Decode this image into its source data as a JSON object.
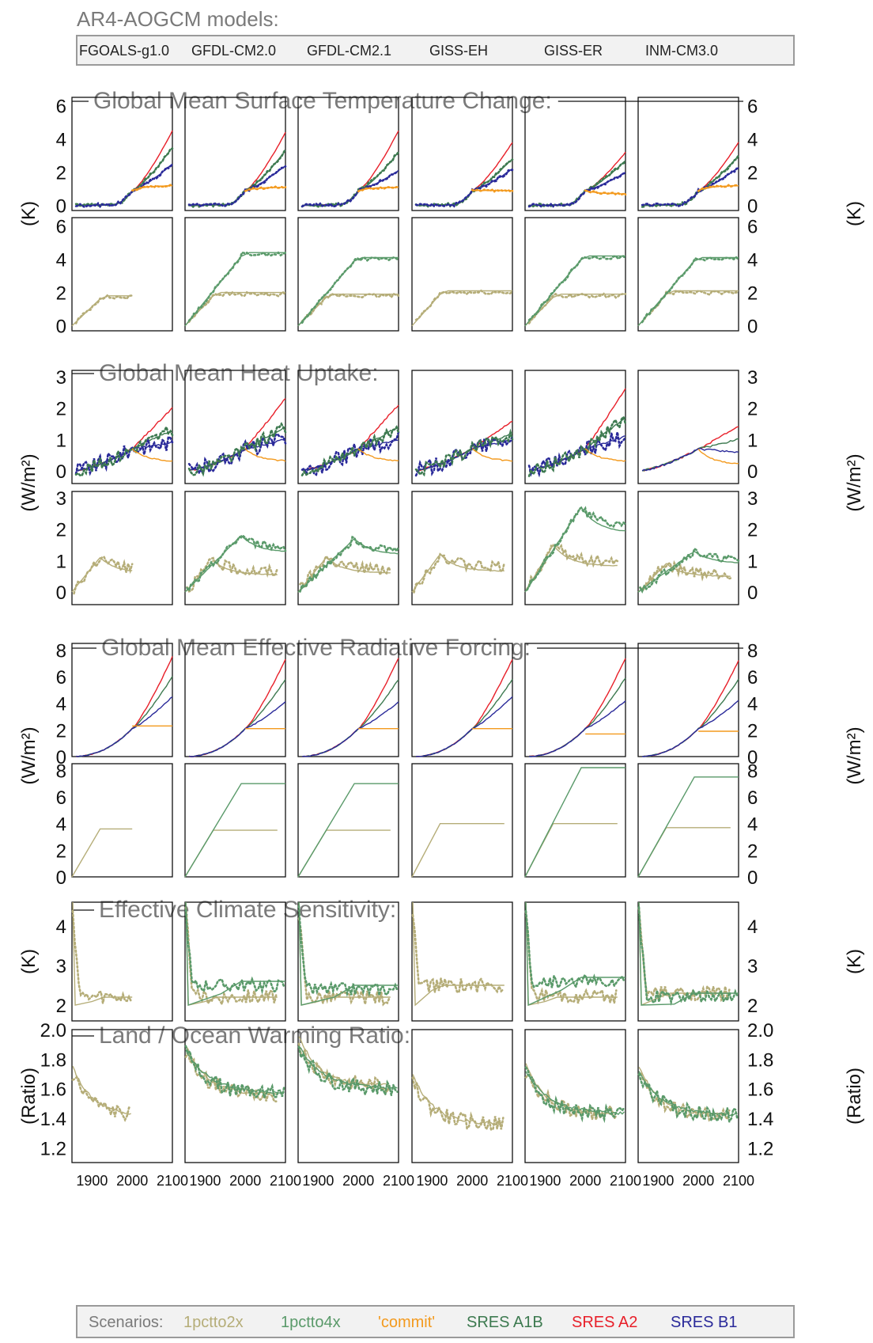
{
  "models_title": "AR4-AOGCM models:",
  "models": [
    "FGOALS-g1.0",
    "GFDL-CM2.0",
    "GFDL-CM2.1",
    "GISS-EH",
    "GISS-ER",
    "INM-CM3.0"
  ],
  "x_ticks": [
    "1900",
    "2000",
    "2100"
  ],
  "legend": {
    "label": "Scenarios:",
    "items": [
      {
        "name": "1pctto2x",
        "color": "#b5ad78"
      },
      {
        "name": "1pctto4x",
        "color": "#5a9a6a"
      },
      {
        "name": "'commit'",
        "color": "#f39a1e"
      },
      {
        "name": "SRES A1B",
        "color": "#3d7a50"
      },
      {
        "name": "SRES A2",
        "color": "#e8202a"
      },
      {
        "name": "SRES B1",
        "color": "#2a2a9a"
      }
    ]
  },
  "sections": [
    {
      "title": "Global Mean Surface Temperature Change:",
      "ylabel_left": "(K)",
      "ylabel_right": "(K)",
      "ticks_a": [
        "0",
        "2",
        "4",
        "6"
      ],
      "ticks_b": [
        "0",
        "2",
        "4",
        "6"
      ]
    },
    {
      "title": "Global Mean Heat Uptake:",
      "ylabel_left": "(W/m²)",
      "ylabel_right": "(W/m²)",
      "ticks_a": [
        "0",
        "1",
        "2",
        "3"
      ],
      "ticks_b": [
        "0",
        "1",
        "2",
        "3"
      ]
    },
    {
      "title": "Global Mean Effective Radiative Forcing:",
      "ylabel_left": "(W/m²)",
      "ylabel_right": "(W/m²)",
      "ticks_a": [
        "0",
        "2",
        "4",
        "6",
        "8"
      ],
      "ticks_b": [
        "0",
        "2",
        "4",
        "6",
        "8"
      ]
    },
    {
      "title": "Effective Climate Sensitivity:",
      "ylabel_left": "(K)",
      "ylabel_right": "(K)",
      "ticks_a": [
        "2",
        "3",
        "4"
      ]
    },
    {
      "title": "Land / Ocean Warming Ratio:",
      "ylabel_left": "(Ratio)",
      "ylabel_right": "(Ratio)",
      "ticks_a": [
        "1.2",
        "1.4",
        "1.6",
        "1.8",
        "2.0"
      ]
    }
  ],
  "chart_data": {
    "type": "line",
    "title": "",
    "x_range": [
      1850,
      2100
    ],
    "models": [
      "FGOALS-g1.0",
      "GFDL-CM2.0",
      "GFDL-CM2.1",
      "GISS-EH",
      "GISS-ER",
      "INM-CM3.0"
    ],
    "panels": [
      {
        "name": "Global Mean Surface Temperature Change (SRES)",
        "unit": "K",
        "ylim": [
          -0.3,
          6.5
        ],
        "series": [
          "SRES A2",
          "SRES A1B",
          "SRES B1",
          "'commit'"
        ],
        "end_values_2100": {
          "SRES A2": [
            4.5,
            4.4,
            4.5,
            3.8,
            3.2,
            3.8
          ],
          "SRES A1B": [
            3.5,
            3.3,
            3.2,
            2.8,
            2.7,
            3.0
          ],
          "SRES B1": [
            2.5,
            2.4,
            2.1,
            2.2,
            2.0,
            2.3
          ],
          "'commit'": [
            1.2,
            1.1,
            1.1,
            0.9,
            0.7,
            1.2
          ]
        }
      },
      {
        "name": "Global Mean Surface Temperature Change (idealized)",
        "unit": "K",
        "ylim": [
          -0.3,
          6.5
        ],
        "series": [
          "1pctto2x",
          "1pctto4x"
        ],
        "plateau_values": {
          "1pctto2x": [
            1.8,
            2.0,
            1.9,
            2.1,
            1.9,
            2.1
          ],
          "1pctto4x": [
            null,
            4.4,
            4.1,
            null,
            4.2,
            4.1
          ]
        }
      },
      {
        "name": "Global Mean Heat Uptake (SRES)",
        "unit": "W/m²",
        "ylim": [
          -0.4,
          3.2
        ],
        "end_values_2100": {
          "SRES A2": [
            2.0,
            2.3,
            2.1,
            1.6,
            2.6,
            1.4
          ],
          "SRES A1B": [
            1.3,
            1.4,
            1.4,
            1.2,
            1.7,
            1.0
          ],
          "SRES B1": [
            0.9,
            1.0,
            1.0,
            1.0,
            1.1,
            0.6
          ],
          "'commit'": [
            0.3,
            0.3,
            0.3,
            0.3,
            0.3,
            0.2
          ]
        }
      },
      {
        "name": "Global Mean Heat Uptake (idealized)",
        "unit": "W/m²",
        "ylim": [
          -0.4,
          3.2
        ],
        "peak_values": {
          "1pctto2x": [
            1.1,
            1.0,
            1.1,
            1.2,
            1.5,
            0.9
          ],
          "1pctto4x": [
            null,
            1.8,
            1.7,
            null,
            2.7,
            1.3
          ]
        }
      },
      {
        "name": "Global Mean Effective Radiative Forcing (SRES)",
        "unit": "W/m²",
        "ylim": [
          0,
          8.5
        ],
        "end_values_2100": {
          "SRES A2": [
            7.5,
            7.3,
            7.4,
            7.3,
            7.4,
            7.2
          ],
          "SRES A1B": [
            6.0,
            5.8,
            5.8,
            5.8,
            5.9,
            5.8
          ],
          "SRES B1": [
            4.5,
            4.1,
            4.1,
            4.5,
            4.2,
            4.2
          ],
          "'commit'": [
            2.3,
            2.1,
            2.1,
            2.1,
            1.7,
            1.9
          ]
        }
      },
      {
        "name": "Global Mean Effective Radiative Forcing (idealized)",
        "unit": "W/m²",
        "ylim": [
          0,
          8.5
        ],
        "plateau_values": {
          "1pctto2x": [
            3.6,
            3.5,
            3.5,
            4.0,
            4.0,
            3.7
          ],
          "1pctto4x": [
            null,
            7.0,
            7.0,
            null,
            8.2,
            7.5
          ]
        }
      },
      {
        "name": "Effective Climate Sensitivity",
        "unit": "K",
        "ylim": [
          1.6,
          4.6
        ],
        "late_values": {
          "1pctto2x": [
            2.2,
            2.2,
            2.2,
            2.5,
            2.2,
            2.3
          ],
          "1pctto4x": [
            null,
            2.6,
            2.5,
            null,
            2.7,
            2.3
          ]
        }
      },
      {
        "name": "Land / Ocean Warming Ratio",
        "unit": "Ratio",
        "ylim": [
          1.1,
          2.0
        ],
        "late_values": {
          "1pctto2x": [
            1.41,
            1.56,
            1.62,
            1.36,
            1.43,
            1.42
          ],
          "1pctto4x": [
            null,
            1.57,
            1.6,
            null,
            1.43,
            1.42
          ]
        }
      }
    ]
  }
}
